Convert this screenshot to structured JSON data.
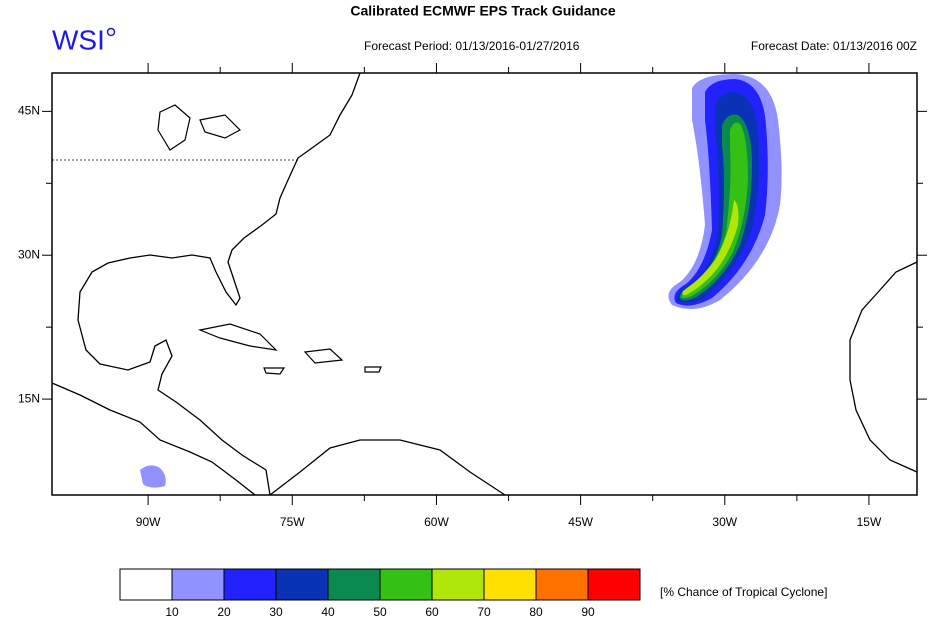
{
  "header": {
    "title": "Calibrated ECMWF EPS Track Guidance",
    "logo": "WSI",
    "period": "Forecast Period: 01/13/2016-01/27/2016",
    "date": "Forecast Date: 01/13/2016 00Z"
  },
  "map": {
    "xlim": [
      -100,
      -10
    ],
    "ylim": [
      5,
      49
    ],
    "xticks": [
      {
        "value": -90,
        "label": "90W"
      },
      {
        "value": -75,
        "label": "75W"
      },
      {
        "value": -60,
        "label": "60W"
      },
      {
        "value": -45,
        "label": "45W"
      },
      {
        "value": -30,
        "label": "30W"
      },
      {
        "value": -15,
        "label": "15W"
      }
    ],
    "yticks": [
      {
        "value": 15,
        "label": "15N"
      },
      {
        "value": 30,
        "label": "30N"
      },
      {
        "value": 45,
        "label": "45N"
      }
    ]
  },
  "colorbar": {
    "levels": [
      10,
      20,
      30,
      40,
      50,
      60,
      70,
      80,
      90
    ],
    "colors": [
      "#ffffff",
      "#9191ff",
      "#2222ff",
      "#0a32b4",
      "#0a8a4e",
      "#34c014",
      "#b0e60a",
      "#ffe000",
      "#ff7200",
      "#ff0000"
    ],
    "label": "[% Chance of Tropical Cyclone]"
  }
}
